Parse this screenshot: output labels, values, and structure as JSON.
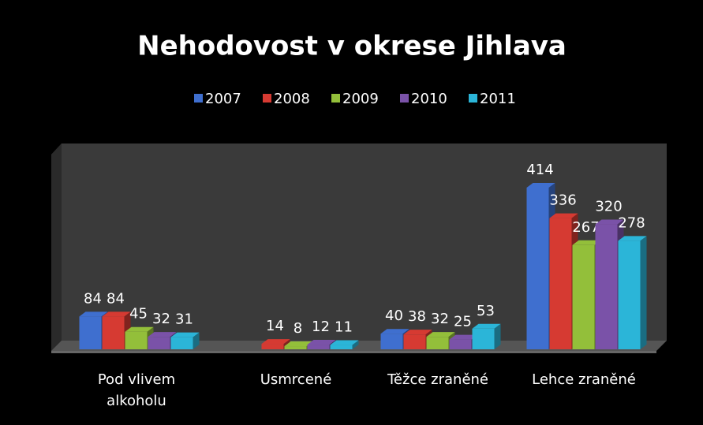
{
  "chart_data": {
    "type": "bar3d",
    "title": "Nehodovost v okrese Jihlava",
    "categories": [
      "Pod vlivem alkoholu",
      "Usmrcené",
      "Těžce zraněné",
      "Lehce zraněné"
    ],
    "series": [
      {
        "name": "2007",
        "color": "#3f6fcf",
        "values": [
          84,
          null,
          40,
          414
        ]
      },
      {
        "name": "2008",
        "color": "#d63a32",
        "values": [
          84,
          14,
          38,
          336
        ]
      },
      {
        "name": "2009",
        "color": "#93bf3a",
        "values": [
          45,
          8,
          32,
          267
        ]
      },
      {
        "name": "2010",
        "color": "#7a52a8",
        "values": [
          32,
          12,
          25,
          320
        ]
      },
      {
        "name": "2011",
        "color": "#2bb5d8",
        "values": [
          31,
          11,
          53,
          278
        ]
      }
    ],
    "legend": "top"
  }
}
